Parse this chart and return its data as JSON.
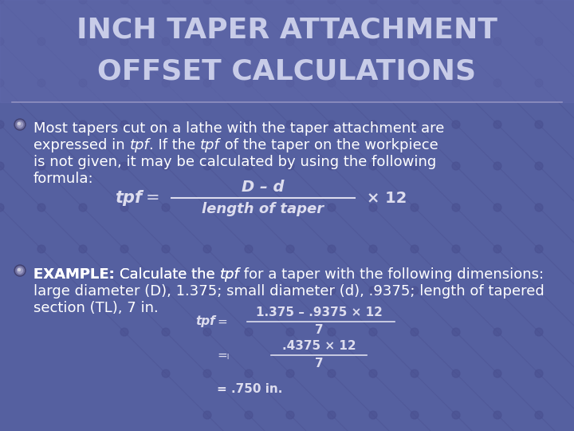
{
  "title_line1": "INCH TAPER ATTACHMENT",
  "title_line2": "OFFSET CALCULATIONS",
  "title_color": "#c8cce8",
  "title_fontsize": 26,
  "title_weight": "bold",
  "bg_color": "#5560a0",
  "text_color": "#ffffff",
  "body_fontsize": 13,
  "formula_color": "#ddddee",
  "formula1_frac_num": "D – d",
  "formula1_frac_den": "length of taper",
  "formula1_suffix": "× 12",
  "formula2_line1_num": "1.375 – .9375 × 12",
  "formula2_line1_den": "7",
  "formula2_line2_num": ".4375 × 12",
  "formula2_line2_den": "7",
  "formula2_line3": "= .750 in.",
  "grid_dot_color": "#4a5090",
  "grid_line_color": "#4a5090",
  "bullet_outer_color": "#8888b8",
  "bullet_inner_color": "#aaaacc"
}
